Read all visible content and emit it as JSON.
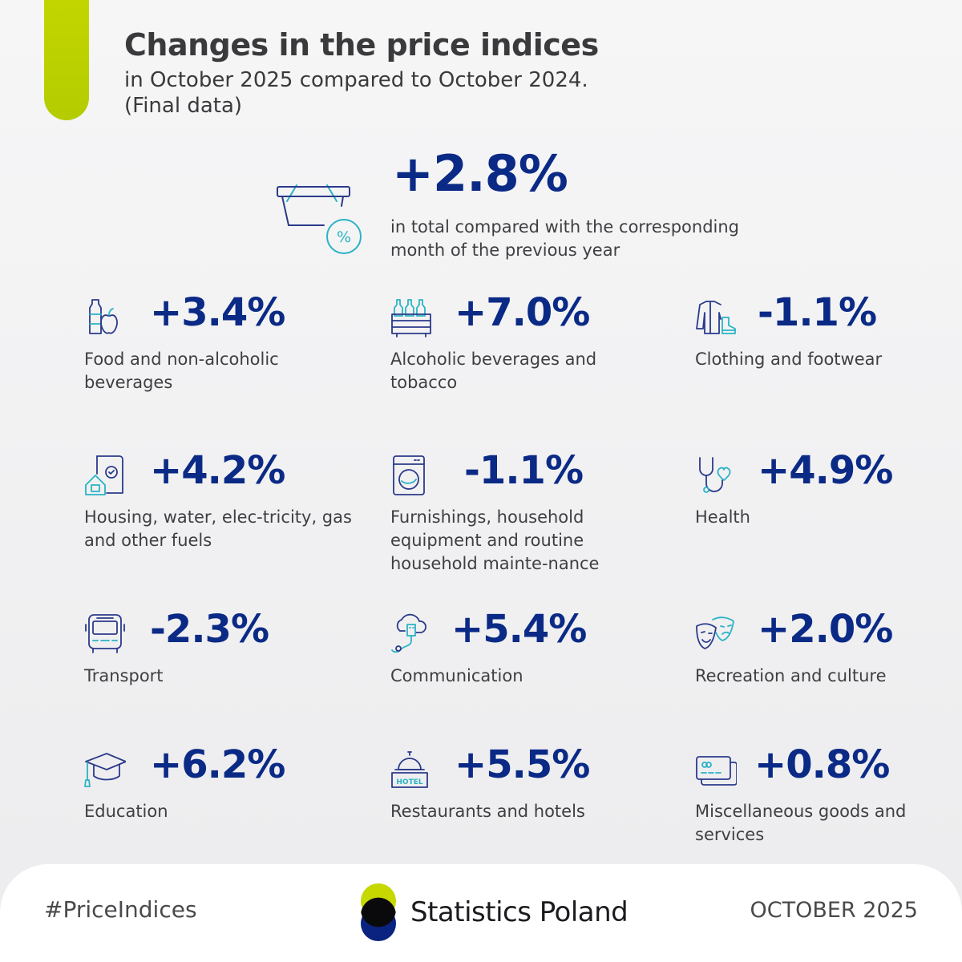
{
  "header": {
    "title": "Changes in the price indices",
    "subtitle_line1": "in October 2025 compared to October 2024.",
    "subtitle_line2": "(Final data)"
  },
  "total": {
    "value": "+2.8%",
    "description": "in total compared with the corresponding month of the previous year",
    "icon": "shopping-basket-percent-icon"
  },
  "categories": [
    {
      "value": "+3.4%",
      "label": "Food and non-alcoholic beverages",
      "icon": "bottle-apple-icon"
    },
    {
      "value": "+7.0%",
      "label": "Alcoholic beverages and tobacco",
      "icon": "bottle-crate-icon"
    },
    {
      "value": "-1.1%",
      "label": "Clothing and footwear",
      "icon": "jacket-boot-icon"
    },
    {
      "value": "+4.2%",
      "label": "Housing, water, elec-tricity, gas and other fuels",
      "icon": "house-bill-icon"
    },
    {
      "value": "-1.1%",
      "label": "Furnishings, household equipment and routine household mainte-nance",
      "icon": "washing-machine-icon"
    },
    {
      "value": "+4.9%",
      "label": "Health",
      "icon": "stethoscope-icon"
    },
    {
      "value": "-2.3%",
      "label": "Transport",
      "icon": "bus-icon"
    },
    {
      "value": "+5.4%",
      "label": "Communication",
      "icon": "cloud-usb-icon"
    },
    {
      "value": "+2.0%",
      "label": "Recreation and culture",
      "icon": "theatre-masks-icon"
    },
    {
      "value": "+6.2%",
      "label": "Education",
      "icon": "graduation-cap-icon"
    },
    {
      "value": "+5.5%",
      "label": "Restaurants and hotels",
      "icon": "hotel-bell-icon"
    },
    {
      "value": "+0.8%",
      "label": "Miscellaneous goods and services",
      "icon": "credit-cards-icon"
    }
  ],
  "footer": {
    "hashtag": "#PriceIndices",
    "logo_text": "Statistics Poland",
    "date": "OCTOBER 2025"
  },
  "colors": {
    "accent_lime": "#c6d800",
    "value_navy": "#0b2a86",
    "icon_navy": "#2b3a8a",
    "icon_teal": "#2ab3c4"
  }
}
